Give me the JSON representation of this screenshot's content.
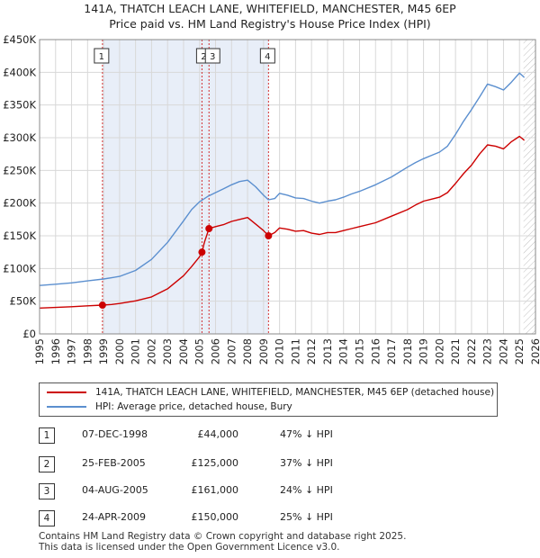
{
  "title_line1": "141A, THATCH LEACH LANE, WHITEFIELD, MANCHESTER, M45 6EP",
  "title_line2": "Price paid vs. HM Land Registry's House Price Index (HPI)",
  "chart_data": {
    "type": "line",
    "xlim": [
      1995,
      2026
    ],
    "ylim": [
      0,
      450000
    ],
    "x_ticks": [
      "1995",
      "1996",
      "1997",
      "1998",
      "1999",
      "2000",
      "2001",
      "2002",
      "2003",
      "2004",
      "2005",
      "2006",
      "2007",
      "2008",
      "2009",
      "2010",
      "2011",
      "2012",
      "2013",
      "2014",
      "2015",
      "2016",
      "2017",
      "2018",
      "2019",
      "2020",
      "2021",
      "2022",
      "2023",
      "2024",
      "2025",
      "2026"
    ],
    "y_ticks": [
      {
        "value": 0,
        "label": "£0"
      },
      {
        "value": 50000,
        "label": "£50K"
      },
      {
        "value": 100000,
        "label": "£100K"
      },
      {
        "value": 150000,
        "label": "£150K"
      },
      {
        "value": 200000,
        "label": "£200K"
      },
      {
        "value": 250000,
        "label": "£250K"
      },
      {
        "value": 300000,
        "label": "£300K"
      },
      {
        "value": 350000,
        "label": "£350K"
      },
      {
        "value": 400000,
        "label": "£400K"
      },
      {
        "value": 450000,
        "label": "£450K"
      }
    ],
    "colors": {
      "property": "#cc0000",
      "hpi": "#5b8fcf",
      "shade": "#e8eef8",
      "grid": "#d8d8d8",
      "future_hatch": "#bbbbbb"
    },
    "shaded_ranges": [
      [
        1998.93,
        2009.31
      ]
    ],
    "future_start": 2025.25,
    "series": [
      {
        "name": "141A, THATCH LEACH LANE, WHITEFIELD, MANCHESTER, M45 6EP (detached house)",
        "key": "property",
        "points": [
          [
            1995.0,
            39500
          ],
          [
            1996.0,
            40500
          ],
          [
            1997.0,
            41500
          ],
          [
            1998.0,
            43000
          ],
          [
            1998.93,
            44000
          ],
          [
            1999.5,
            45000
          ],
          [
            2000.0,
            46500
          ],
          [
            2001.0,
            50500
          ],
          [
            2002.0,
            56500
          ],
          [
            2003.0,
            69000
          ],
          [
            2004.0,
            89000
          ],
          [
            2004.5,
            103000
          ],
          [
            2005.0,
            118000
          ],
          [
            2005.15,
            125000
          ],
          [
            2005.3,
            140000
          ],
          [
            2005.59,
            161000
          ],
          [
            2006.0,
            164000
          ],
          [
            2006.5,
            167000
          ],
          [
            2007.0,
            172000
          ],
          [
            2007.5,
            175000
          ],
          [
            2008.0,
            178000
          ],
          [
            2008.5,
            168000
          ],
          [
            2009.0,
            158000
          ],
          [
            2009.31,
            150000
          ],
          [
            2009.7,
            155000
          ],
          [
            2010.0,
            162000
          ],
          [
            2010.5,
            160000
          ],
          [
            2011.0,
            157000
          ],
          [
            2011.5,
            158000
          ],
          [
            2012.0,
            154000
          ],
          [
            2012.5,
            152000
          ],
          [
            2013.0,
            155000
          ],
          [
            2013.5,
            155000
          ],
          [
            2014.0,
            158000
          ],
          [
            2014.5,
            161000
          ],
          [
            2015.0,
            164000
          ],
          [
            2016.0,
            170000
          ],
          [
            2017.0,
            180000
          ],
          [
            2018.0,
            190000
          ],
          [
            2018.5,
            197000
          ],
          [
            2019.0,
            203000
          ],
          [
            2019.5,
            206000
          ],
          [
            2020.0,
            209000
          ],
          [
            2020.5,
            216000
          ],
          [
            2021.0,
            230000
          ],
          [
            2021.5,
            245000
          ],
          [
            2022.0,
            258000
          ],
          [
            2022.5,
            275000
          ],
          [
            2023.0,
            289000
          ],
          [
            2023.5,
            287000
          ],
          [
            2024.0,
            283000
          ],
          [
            2024.5,
            294000
          ],
          [
            2025.0,
            302000
          ],
          [
            2025.3,
            296000
          ]
        ]
      },
      {
        "name": "HPI: Average price, detached house, Bury",
        "key": "hpi",
        "points": [
          [
            1995.0,
            74000
          ],
          [
            1996.0,
            76000
          ],
          [
            1997.0,
            78000
          ],
          [
            1998.0,
            81000
          ],
          [
            1999.0,
            84000
          ],
          [
            2000.0,
            88000
          ],
          [
            2001.0,
            97000
          ],
          [
            2002.0,
            114000
          ],
          [
            2003.0,
            140000
          ],
          [
            2004.0,
            173000
          ],
          [
            2004.5,
            190000
          ],
          [
            2005.0,
            202000
          ],
          [
            2005.5,
            210000
          ],
          [
            2006.0,
            216000
          ],
          [
            2006.5,
            222000
          ],
          [
            2007.0,
            228000
          ],
          [
            2007.5,
            233000
          ],
          [
            2008.0,
            235000
          ],
          [
            2008.5,
            225000
          ],
          [
            2009.0,
            212000
          ],
          [
            2009.31,
            205000
          ],
          [
            2009.7,
            207000
          ],
          [
            2010.0,
            215000
          ],
          [
            2010.5,
            212000
          ],
          [
            2011.0,
            208000
          ],
          [
            2011.5,
            207000
          ],
          [
            2012.0,
            203000
          ],
          [
            2012.5,
            200000
          ],
          [
            2013.0,
            203000
          ],
          [
            2013.5,
            205000
          ],
          [
            2014.0,
            209000
          ],
          [
            2014.5,
            214000
          ],
          [
            2015.0,
            218000
          ],
          [
            2016.0,
            228000
          ],
          [
            2017.0,
            240000
          ],
          [
            2018.0,
            255000
          ],
          [
            2018.5,
            262000
          ],
          [
            2019.0,
            268000
          ],
          [
            2019.5,
            273000
          ],
          [
            2020.0,
            278000
          ],
          [
            2020.5,
            287000
          ],
          [
            2021.0,
            305000
          ],
          [
            2021.5,
            325000
          ],
          [
            2022.0,
            343000
          ],
          [
            2022.5,
            362000
          ],
          [
            2023.0,
            382000
          ],
          [
            2023.5,
            378000
          ],
          [
            2024.0,
            373000
          ],
          [
            2024.5,
            385000
          ],
          [
            2025.0,
            399000
          ],
          [
            2025.3,
            392000
          ]
        ]
      }
    ],
    "markers": [
      {
        "num": "1",
        "x": 1998.93,
        "y": 44000
      },
      {
        "num": "2",
        "x": 2005.15,
        "y": 125000
      },
      {
        "num": "3",
        "x": 2005.59,
        "y": 161000
      },
      {
        "num": "4",
        "x": 2009.31,
        "y": 150000
      }
    ]
  },
  "legend": {
    "property_label": "141A, THATCH LEACH LANE, WHITEFIELD, MANCHESTER, M45 6EP (detached house)",
    "hpi_label": "HPI: Average price, detached house, Bury"
  },
  "transactions": [
    {
      "num": "1",
      "date": "07-DEC-1998",
      "price": "£44,000",
      "hpi": "47% ↓ HPI"
    },
    {
      "num": "2",
      "date": "25-FEB-2005",
      "price": "£125,000",
      "hpi": "37% ↓ HPI"
    },
    {
      "num": "3",
      "date": "04-AUG-2005",
      "price": "£161,000",
      "hpi": "24% ↓ HPI"
    },
    {
      "num": "4",
      "date": "24-APR-2009",
      "price": "£150,000",
      "hpi": "25% ↓ HPI"
    }
  ],
  "footer_line1": "Contains HM Land Registry data © Crown copyright and database right 2025.",
  "footer_line2": "This data is licensed under the Open Government Licence v3.0."
}
